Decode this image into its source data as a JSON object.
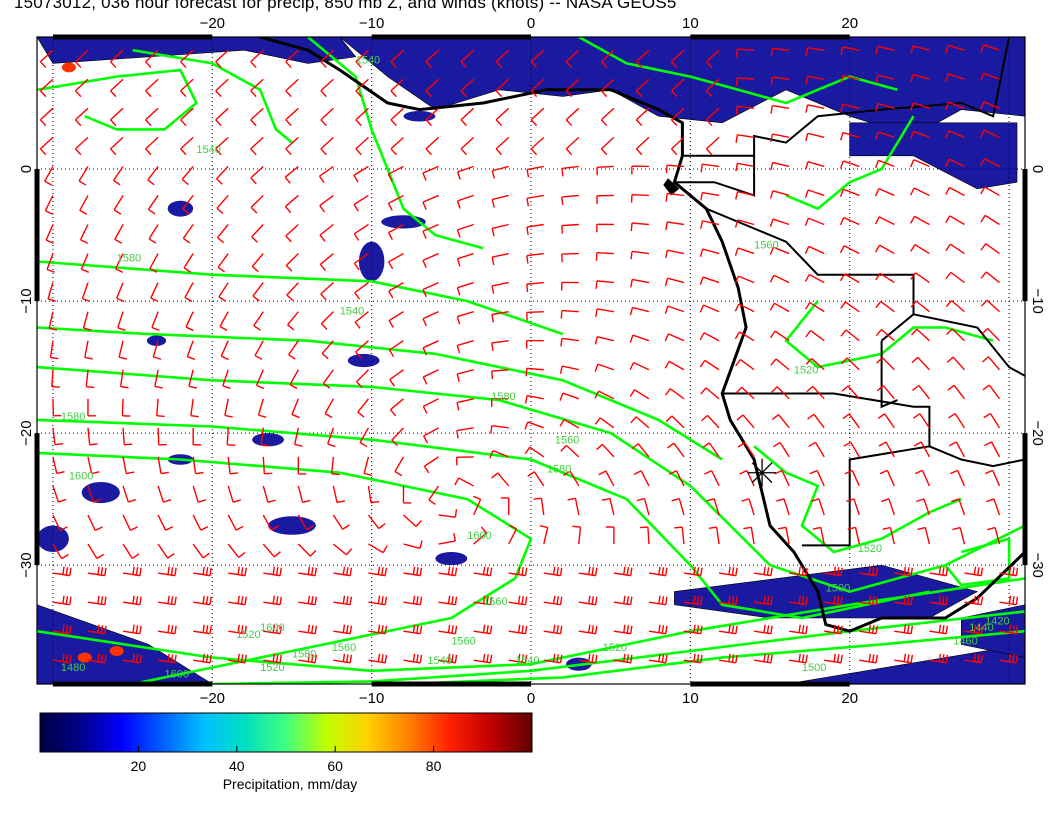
{
  "title": "15073012, 036 hour forecast for precip, 850 mb Z, and winds (knots) -- NASA GEOS5",
  "map": {
    "lon_range": [
      -31,
      31
    ],
    "lat_range": [
      -39,
      10
    ],
    "lon_ticks": [
      -20,
      -10,
      0,
      10,
      20
    ],
    "lat_ticks": [
      0,
      -10,
      -20,
      -30
    ],
    "lon_tick_labels": [
      "−20",
      "−10",
      "0",
      "10",
      "20"
    ],
    "lat_tick_labels": [
      "0",
      "−10",
      "−20",
      "−30"
    ],
    "grid": true,
    "colors": {
      "wind_barbs": "#ff0000",
      "contours": "#00ff00",
      "coastlines": "#000000",
      "precip_low": "#00008b",
      "contour_labels": "#33cc33"
    }
  },
  "contours": {
    "field": "850 mb geopotential height",
    "labels": [
      "1540",
      "1580",
      "1520",
      "1560",
      "1580",
      "1600",
      "1600",
      "1580",
      "1560",
      "1540",
      "1520",
      "1560",
      "1580",
      "1600",
      "1540",
      "1520",
      "1500",
      "1520",
      "1540",
      "1560",
      "1580",
      "1600",
      "1480",
      "1520",
      "1540",
      "1560",
      "1500",
      "1460",
      "1440",
      "1420"
    ]
  },
  "marker": {
    "symbol": "asterisk",
    "lon": 14.5,
    "lat": -23
  },
  "colorbar": {
    "label": "Precipitation, mm/day",
    "ticks": [
      "20",
      "40",
      "60",
      "80"
    ],
    "tick_values": [
      20,
      40,
      60,
      80
    ],
    "range": [
      0,
      100
    ],
    "colors": [
      "#000040",
      "#00008b",
      "#0000ff",
      "#0060ff",
      "#00c0ff",
      "#00e0c0",
      "#40ff80",
      "#c0ff00",
      "#ffd000",
      "#ff8000",
      "#ff2000",
      "#c00000",
      "#600000"
    ]
  }
}
